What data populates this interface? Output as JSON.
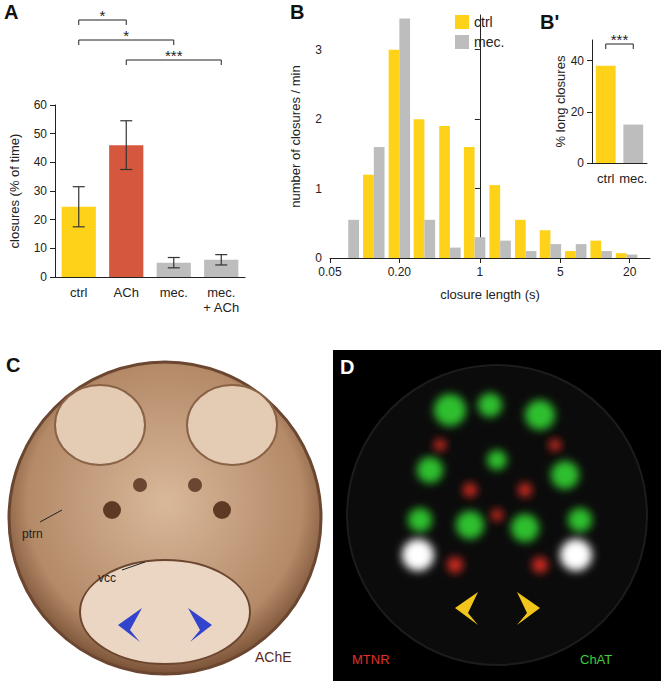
{
  "chart_data": [
    {
      "panel": "A",
      "type": "bar",
      "categories": [
        "ctrl",
        "ACh",
        "mec.",
        "mec.\n+ ACh"
      ],
      "values": [
        24.5,
        46,
        5,
        6
      ],
      "errors": [
        7,
        8.5,
        1.8,
        1.8
      ],
      "colors": [
        "#FFD21A",
        "#D4573E",
        "#BDBDBD",
        "#BDBDBD"
      ],
      "y_label": "closures (% of time)",
      "ylim": [
        0,
        60
      ],
      "yticks": [
        0,
        10,
        20,
        30,
        40,
        50,
        60
      ],
      "grid": false,
      "annotations": [
        {
          "from": "ctrl",
          "to": "ACh",
          "text": "*"
        },
        {
          "from": "ctrl",
          "to": "mec.",
          "text": "*"
        },
        {
          "from": "ACh",
          "to": "mec.\n+ ACh",
          "text": "***"
        }
      ]
    },
    {
      "panel": "B",
      "type": "bar",
      "x": [
        0.072,
        0.12,
        0.2,
        0.33,
        0.55,
        0.9,
        1.5,
        2.5,
        4.1,
        6.8,
        11.3,
        18.8
      ],
      "series": [
        {
          "name": "ctrl",
          "color": "#FFD21A",
          "values": [
            0,
            1.2,
            3.0,
            2.0,
            1.9,
            1.6,
            1.05,
            0.55,
            0.4,
            0.1,
            0.25,
            0.07
          ]
        },
        {
          "name": "mec.",
          "color": "#BDBDBD",
          "values": [
            0.55,
            1.6,
            3.45,
            0.55,
            0.15,
            0.3,
            0.25,
            0.1,
            0.2,
            0.2,
            0.1,
            0.05
          ]
        }
      ],
      "x_label": "closure length (s)",
      "y_label": "number of closures / min",
      "xlim": [
        0.05,
        30
      ],
      "xticks": [
        0.05,
        {
          "value": 0.2,
          "label": "0.20"
        },
        1,
        5,
        20
      ],
      "ylim": [
        0,
        3.5
      ],
      "yticks": [
        0,
        1,
        2,
        3
      ],
      "log": "x",
      "legend": "top",
      "grid": false
    },
    {
      "panel": "B'",
      "type": "bar",
      "categories": [
        "ctrl",
        "mec."
      ],
      "values": [
        38,
        15
      ],
      "colors": [
        "#FFD21A",
        "#BDBDBD"
      ],
      "y_label": "% long closures",
      "ylim": [
        0,
        48
      ],
      "yticks": [
        0,
        20,
        40
      ],
      "grid": false,
      "annotations": [
        {
          "from": "ctrl",
          "to": "mec.",
          "text": "***"
        }
      ]
    }
  ],
  "images": [
    {
      "panel": "C",
      "labels": [
        {
          "text": "ptrn",
          "color": "#222222"
        },
        {
          "text": "vcc",
          "color": "#222222"
        },
        {
          "text": "AChE",
          "color": "#5A2A1A"
        }
      ]
    },
    {
      "panel": "D",
      "labels": [
        {
          "text": "MTNR",
          "color": "#E0302A"
        },
        {
          "text": "ChAT",
          "color": "#3CCF3C"
        }
      ]
    }
  ]
}
